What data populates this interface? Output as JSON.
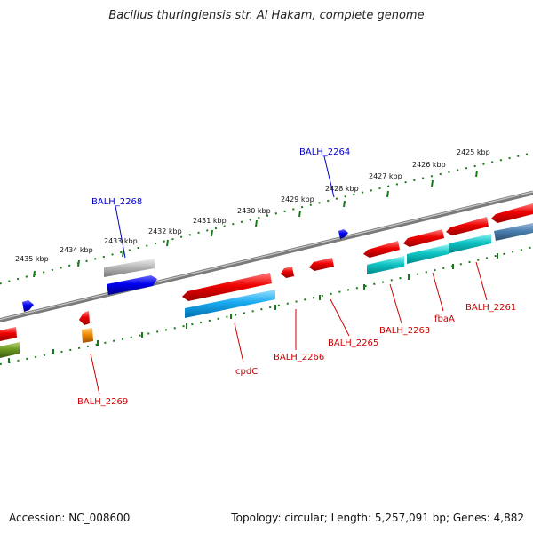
{
  "title": "Bacillus thuringiensis str. Al Hakam, complete genome",
  "footer": {
    "accession": "Accession: NC_008600",
    "topology": "Topology: circular; Length: 5,257,091 bp; Genes: 4,882"
  },
  "ticks": [
    {
      "label": "2425 kbp"
    },
    {
      "label": "2426 kbp"
    },
    {
      "label": "2427 kbp"
    },
    {
      "label": "2428 kbp"
    },
    {
      "label": "2429 kbp"
    },
    {
      "label": "2430 kbp"
    },
    {
      "label": "2431 kbp"
    },
    {
      "label": "2432 kbp"
    },
    {
      "label": "2433 kbp"
    },
    {
      "label": "2434 kbp"
    },
    {
      "label": "2435 kbp"
    }
  ],
  "gene_labels": [
    {
      "label": "BALH_2264",
      "color": "#0000cc"
    },
    {
      "label": "BALH_2268",
      "color": "#0000cc"
    },
    {
      "label": "cpdC",
      "color": "#cc0000"
    },
    {
      "label": "BALH_2266",
      "color": "#cc0000"
    },
    {
      "label": "BALH_2265",
      "color": "#cc0000"
    },
    {
      "label": "BALH_2263",
      "color": "#cc0000"
    },
    {
      "label": "fbaA",
      "color": "#cc0000"
    },
    {
      "label": "BALH_2261",
      "color": "#cc0000"
    },
    {
      "label": "BALH_2269",
      "color": "#cc0000"
    }
  ],
  "colors": {
    "backbone": "#7a7a7a",
    "tick": "#1a7a1a",
    "forward_cds": "#0000ee",
    "reverse_cds": "#ee0000",
    "reverse_gene": "#00c8c8",
    "pseudo": "#9a9a9a"
  }
}
